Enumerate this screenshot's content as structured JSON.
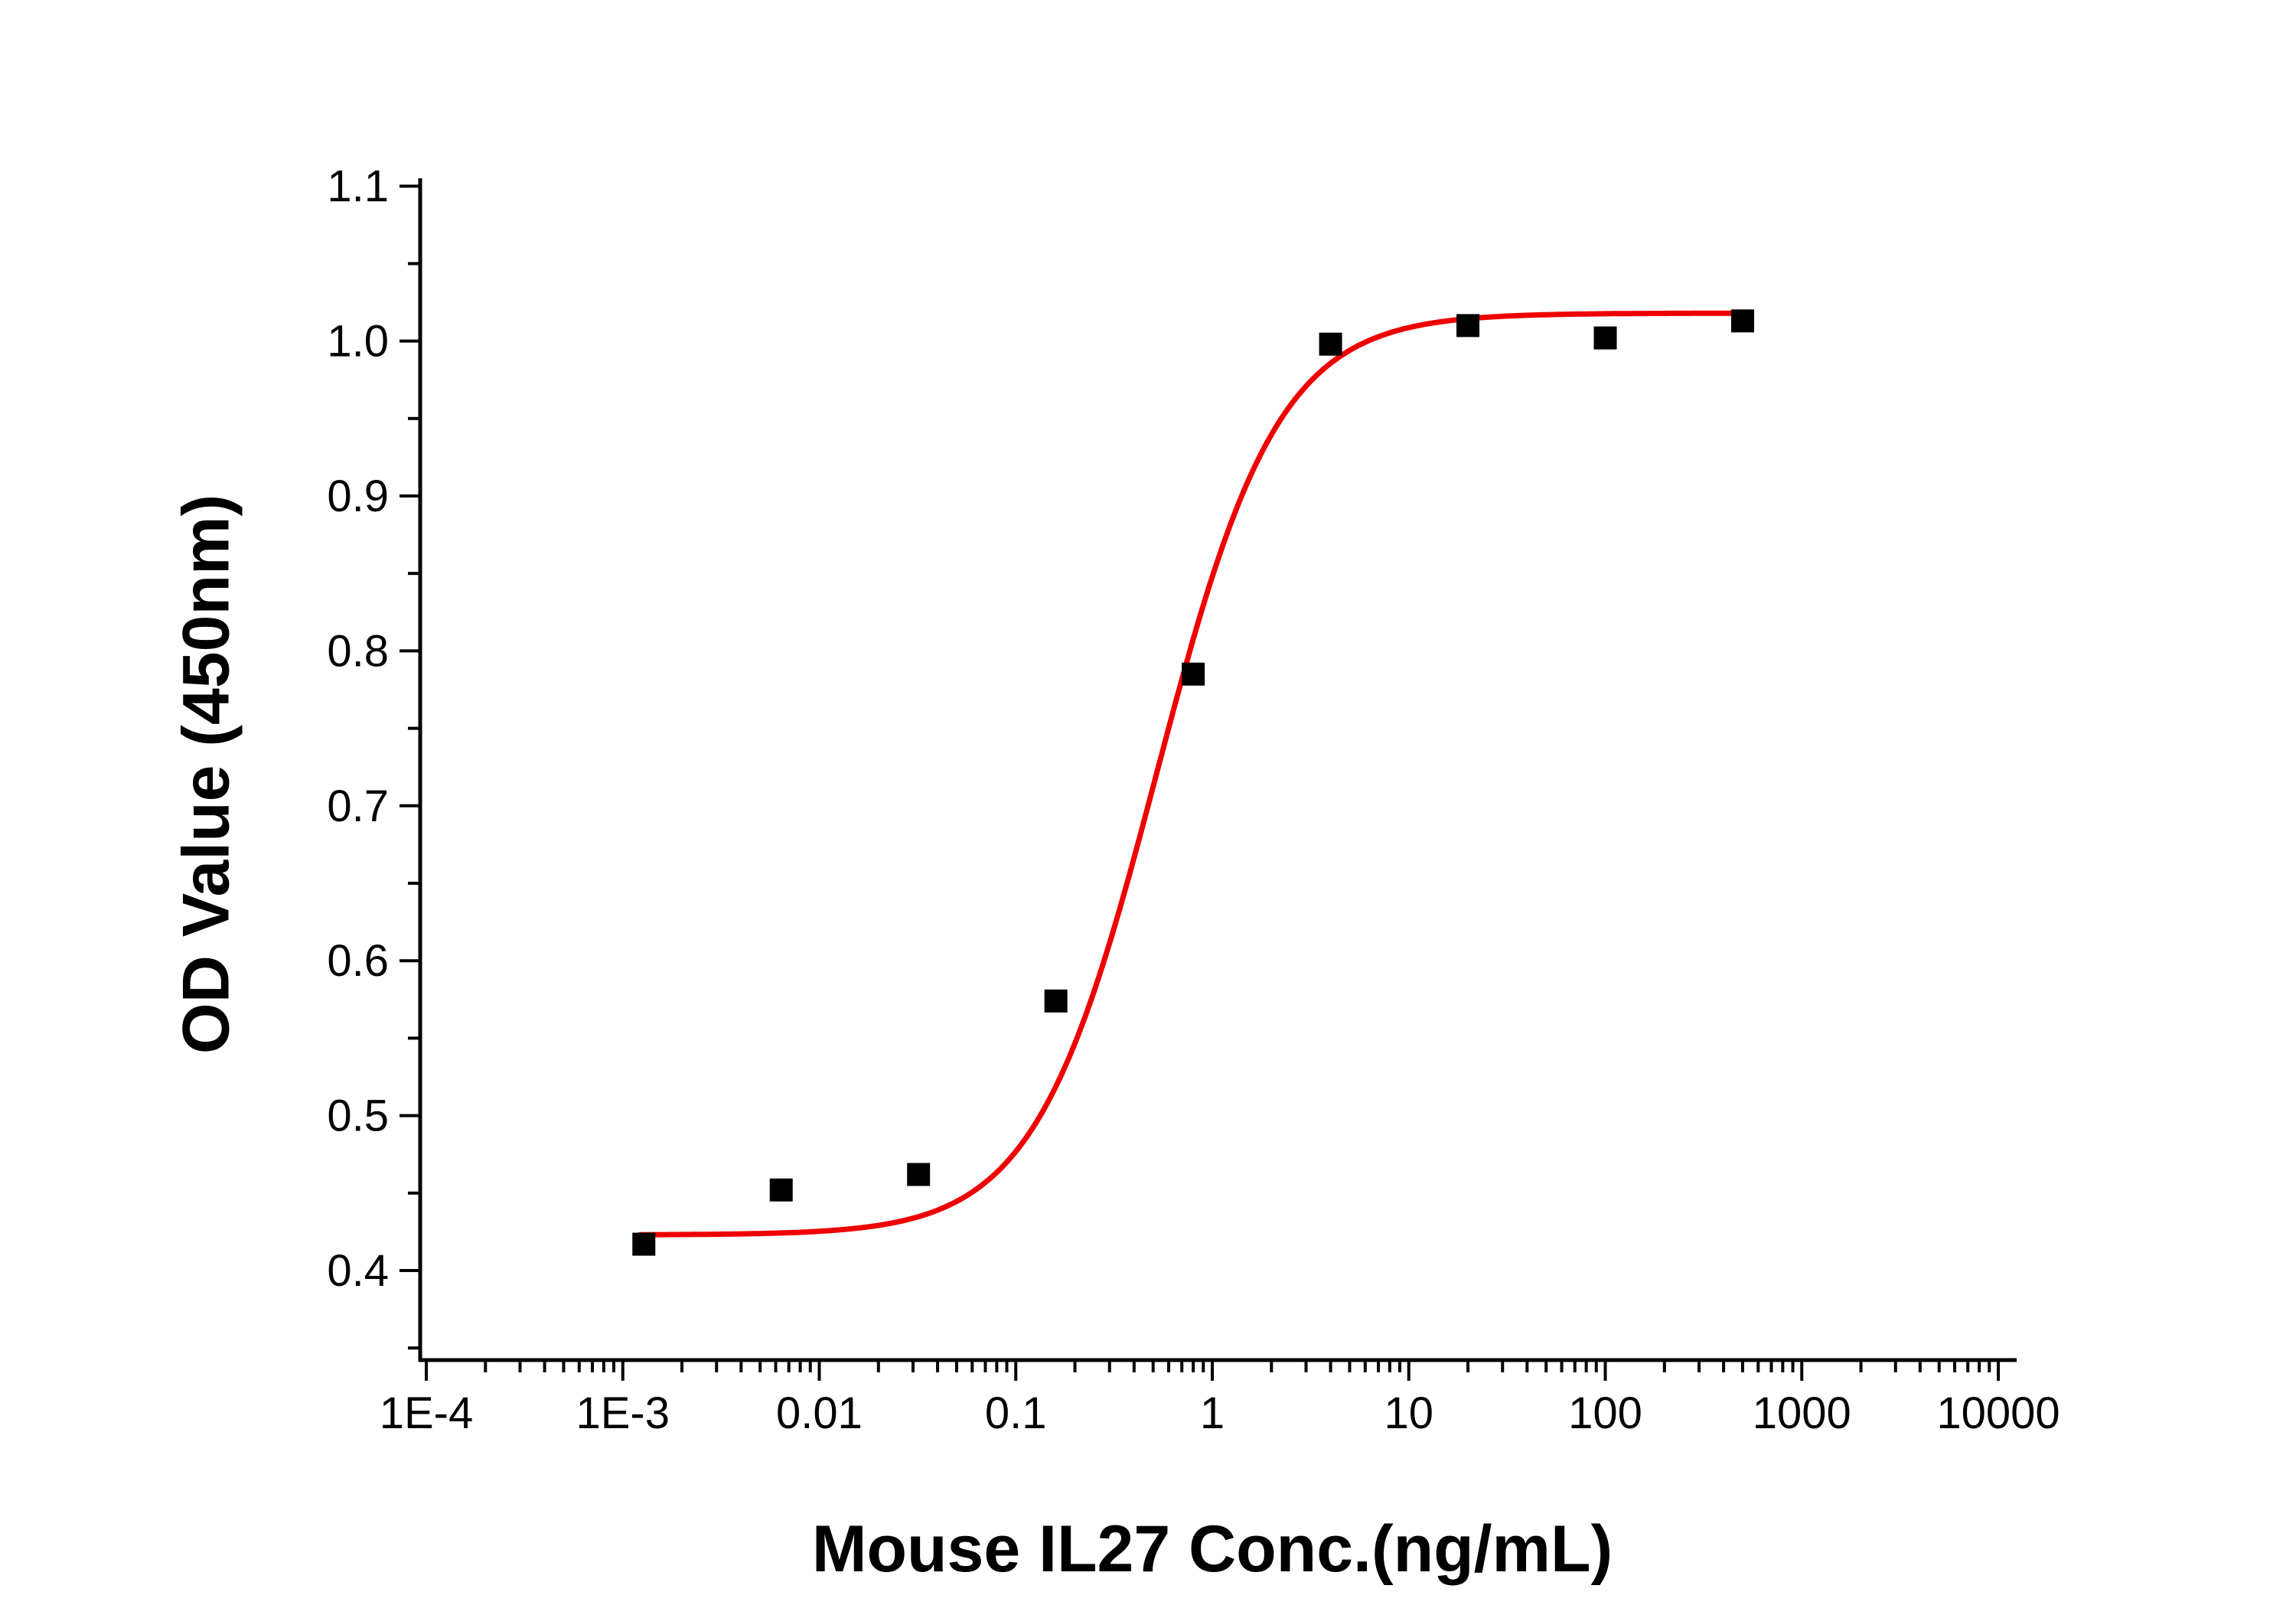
{
  "chart_data": {
    "type": "scatter",
    "title": "",
    "xlabel": "Mouse IL27 Conc.(ng/mL)",
    "ylabel": "OD Value (450nm)",
    "x_scale": "log",
    "xlim_log10": [
      -4,
      4
    ],
    "ylim": [
      0.342,
      1.105
    ],
    "x_ticks": {
      "values": [
        0.0001,
        0.001,
        0.01,
        0.1,
        1,
        10,
        100,
        1000,
        10000
      ],
      "labels": [
        "1E-4",
        "1E-3",
        "0.01",
        "0.1",
        "1",
        "10",
        "100",
        "1000",
        "10000"
      ]
    },
    "y_ticks": {
      "values": [
        0.4,
        0.5,
        0.6,
        0.7,
        0.8,
        0.9,
        1.0,
        1.1
      ],
      "labels": [
        "0.4",
        "0.5",
        "0.6",
        "0.7",
        "0.8",
        "0.9",
        "1.0",
        "1.1"
      ],
      "minor_values": [
        0.35,
        0.45,
        0.55,
        0.65,
        0.75,
        0.85,
        0.95,
        1.05
      ]
    },
    "points": [
      {
        "x": 0.00128,
        "y": 0.417
      },
      {
        "x": 0.0064,
        "y": 0.452
      },
      {
        "x": 0.032,
        "y": 0.462
      },
      {
        "x": 0.16,
        "y": 0.574
      },
      {
        "x": 0.8,
        "y": 0.785
      },
      {
        "x": 4,
        "y": 0.998
      },
      {
        "x": 20,
        "y": 1.01
      },
      {
        "x": 100,
        "y": 1.002
      },
      {
        "x": 500,
        "y": 1.013
      }
    ],
    "fit": {
      "model": "4PL",
      "bottom": 0.423,
      "top": 1.018,
      "ec50": 0.52,
      "hill": 1.4,
      "x_start": 0.00122,
      "x_end": 510
    },
    "legend": "none",
    "grid": "off",
    "colors": {
      "curve": "#ef0000",
      "marker": "#000000",
      "axis": "#000000",
      "text": "#000000",
      "background": "#ffffff"
    }
  }
}
